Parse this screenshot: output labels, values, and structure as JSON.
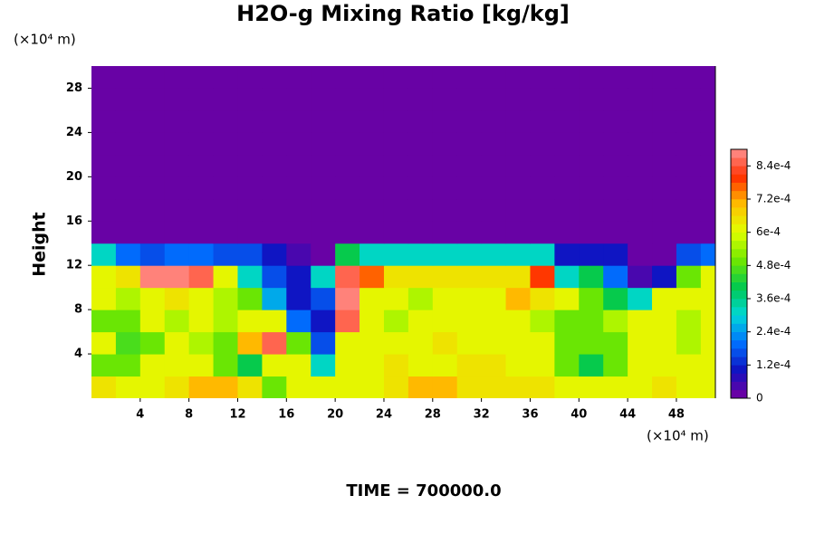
{
  "chart_data": {
    "type": "heatmap",
    "title": "H2O-g Mixing Ratio [kg/kg]",
    "ylabel": "Height",
    "x_unit": "(×10⁴ m)",
    "y_unit": "(×10⁴ m)",
    "footer": "TIME = 700000.0",
    "xlim": [
      0,
      51.2
    ],
    "xticks": [
      4,
      8,
      12,
      16,
      20,
      24,
      28,
      32,
      36,
      40,
      44,
      48
    ],
    "ylim": [
      0,
      30
    ],
    "yticks": [
      4,
      8,
      12,
      16,
      20,
      24,
      28
    ],
    "zlim": [
      0,
      0.0009
    ],
    "zticks": [
      0,
      {
        "value": 0.00012,
        "label": "1.2e-4"
      },
      {
        "value": 0.00024,
        "label": "2.4e-4"
      },
      {
        "value": 0.00036,
        "label": "3.6e-4"
      },
      {
        "value": 0.00048,
        "label": "4.8e-4"
      },
      {
        "value": 0.0006,
        "label": "6e-4"
      },
      {
        "value": 0.00072,
        "label": "7.2e-4"
      },
      {
        "value": 0.00084,
        "label": "8.4e-4"
      }
    ],
    "levels": 30,
    "colormap": [
      "#7800a0",
      "#1010c0",
      "#0070ff",
      "#00d8d8",
      "#00c850",
      "#70e800",
      "#e0ff00",
      "#ffc000",
      "#ff3000",
      "#ff9090"
    ],
    "x": [
      1,
      3,
      5,
      7,
      9,
      11,
      13,
      15,
      17,
      19,
      21,
      23,
      25,
      27,
      29,
      31,
      33,
      35,
      37,
      39,
      41,
      43,
      45,
      47,
      49,
      51
    ],
    "y": [
      1,
      3,
      5,
      7,
      9,
      11,
      13,
      15,
      17,
      19,
      21,
      23,
      25,
      27,
      29
    ],
    "z": [
      [
        0.00065,
        0.0006,
        0.0006,
        0.00065,
        0.0007,
        0.0007,
        0.00065,
        0.0005,
        0.0006,
        0.0006,
        0.0006,
        0.0006,
        0.00065,
        0.0007,
        0.0007,
        0.00065,
        0.00065,
        0.00065,
        0.00065,
        0.0006,
        0.0006,
        0.0006,
        0.0006,
        0.00065,
        0.0006,
        0.0006
      ],
      [
        0.0005,
        0.0005,
        0.0006,
        0.0006,
        0.0006,
        0.0005,
        0.0004,
        0.0006,
        0.0006,
        0.0003,
        0.0006,
        0.0006,
        0.00065,
        0.0006,
        0.0006,
        0.00065,
        0.00065,
        0.0006,
        0.0006,
        0.0005,
        0.0004,
        0.0005,
        0.0006,
        0.0006,
        0.0006,
        0.0006
      ],
      [
        0.0006,
        0.00045,
        0.0005,
        0.0006,
        0.00055,
        0.0005,
        0.0007,
        0.00085,
        0.0005,
        0.00015,
        0.0006,
        0.0006,
        0.0006,
        0.0006,
        0.00065,
        0.0006,
        0.0006,
        0.0006,
        0.0006,
        0.0005,
        0.0005,
        0.0005,
        0.0006,
        0.0006,
        0.00055,
        0.0006
      ],
      [
        0.0005,
        0.0005,
        0.0006,
        0.00055,
        0.0006,
        0.00055,
        0.0006,
        0.0006,
        0.0002,
        0.0001,
        0.00085,
        0.0006,
        0.00055,
        0.0006,
        0.0006,
        0.0006,
        0.0006,
        0.0006,
        0.00055,
        0.0005,
        0.0005,
        0.00055,
        0.0006,
        0.0006,
        0.00055,
        0.0006
      ],
      [
        0.0006,
        0.00055,
        0.0006,
        0.00065,
        0.0006,
        0.00055,
        0.0005,
        0.00025,
        0.0001,
        0.00015,
        0.0009,
        0.0006,
        0.0006,
        0.00055,
        0.0006,
        0.0006,
        0.0006,
        0.0007,
        0.00065,
        0.0006,
        0.0005,
        0.0004,
        0.0003,
        0.0006,
        0.0006,
        0.0006
      ],
      [
        0.0006,
        0.00065,
        0.0009,
        0.0009,
        0.00085,
        0.0006,
        0.0003,
        0.00015,
        0.0001,
        0.0003,
        0.00085,
        0.00075,
        0.00065,
        0.00065,
        0.00065,
        0.00065,
        0.00065,
        0.00065,
        0.0008,
        0.0003,
        0.0004,
        0.0002,
        3e-05,
        0.0001,
        0.0005,
        0.0006
      ],
      [
        0.0003,
        0.0002,
        0.00015,
        0.0002,
        0.0002,
        0.00015,
        0.00015,
        0.0001,
        5e-05,
        2e-05,
        0.0004,
        0.0003,
        0.0003,
        0.0003,
        0.0003,
        0.0003,
        0.0003,
        0.0003,
        0.0003,
        0.0001,
        0.0001,
        0.0001,
        0,
        0,
        0.00015,
        0.0002
      ],
      [
        0,
        0,
        0,
        0,
        0,
        0,
        0,
        0,
        0,
        0,
        0,
        0,
        0,
        0,
        0,
        0,
        0,
        0,
        0,
        0,
        0,
        0,
        0,
        0,
        0,
        0
      ],
      [
        0,
        0,
        0,
        0,
        0,
        0,
        0,
        0,
        0,
        0,
        0,
        0,
        0,
        0,
        0,
        0,
        0,
        0,
        0,
        0,
        0,
        0,
        0,
        0,
        0,
        0
      ],
      [
        0,
        0,
        0,
        0,
        0,
        0,
        0,
        0,
        0,
        0,
        0,
        0,
        0,
        0,
        0,
        0,
        0,
        0,
        0,
        0,
        0,
        0,
        0,
        0,
        0,
        0
      ],
      [
        0,
        0,
        0,
        0,
        0,
        0,
        0,
        0,
        0,
        0,
        0,
        0,
        0,
        0,
        0,
        0,
        0,
        0,
        0,
        0,
        0,
        0,
        0,
        0,
        0,
        0
      ],
      [
        0,
        0,
        0,
        0,
        0,
        0,
        0,
        0,
        0,
        0,
        0,
        0,
        0,
        0,
        0,
        0,
        0,
        0,
        0,
        0,
        0,
        0,
        0,
        0,
        0,
        0
      ],
      [
        0,
        0,
        0,
        0,
        0,
        0,
        0,
        0,
        0,
        0,
        0,
        0,
        0,
        0,
        0,
        0,
        0,
        0,
        0,
        0,
        0,
        0,
        0,
        0,
        0,
        0
      ],
      [
        0,
        0,
        0,
        0,
        0,
        0,
        0,
        0,
        0,
        0,
        0,
        0,
        0,
        0,
        0,
        0,
        0,
        0,
        0,
        0,
        0,
        0,
        0,
        0,
        0,
        0
      ],
      [
        0,
        0,
        0,
        0,
        0,
        0,
        0,
        0,
        0,
        0,
        0,
        0,
        0,
        0,
        0,
        0,
        0,
        0,
        0,
        0,
        0,
        0,
        0,
        0,
        0,
        0
      ]
    ]
  }
}
